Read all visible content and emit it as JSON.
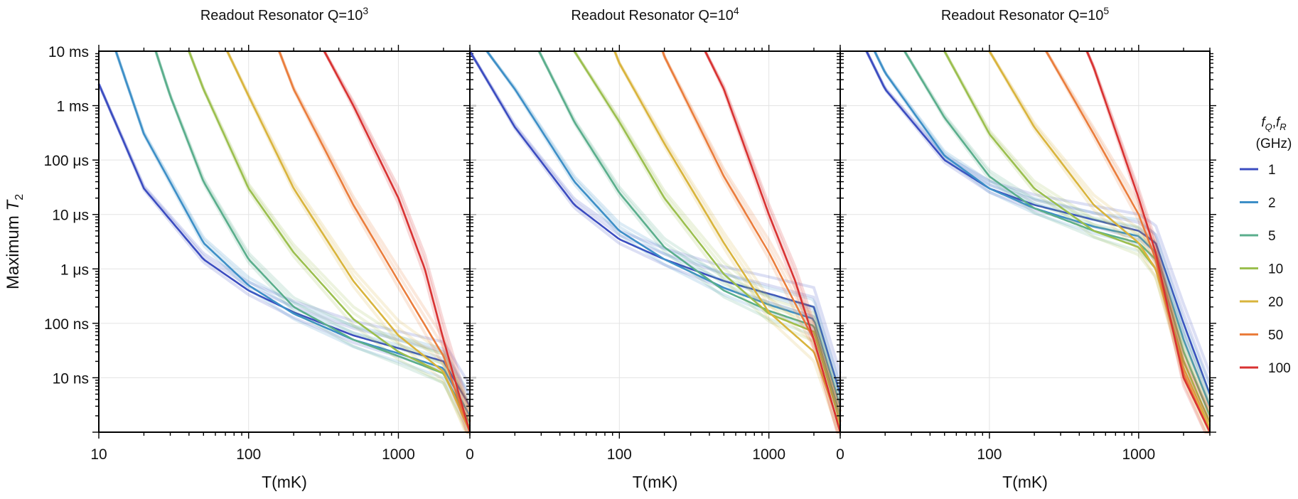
{
  "figure": {
    "ylabel_main": "Maximum ",
    "ylabel_sym": "T",
    "ylabel_sub": "2",
    "legend_title_line1_fQ": "f",
    "legend_title_line1_fQ_sub": "Q",
    "legend_title_line1_sep": ",",
    "legend_title_line1_fR": "f",
    "legend_title_line1_fR_sub": "R",
    "legend_title_line2": "(GHz)"
  },
  "chart_data": [
    {
      "type": "line",
      "title_prefix": "Readout Resonator Q=10",
      "title_exp": "3",
      "xlabel": "T(mK)",
      "xscale": "log",
      "yscale": "log",
      "xlim": [
        10,
        3000
      ],
      "ylim_seconds": [
        1e-09,
        0.01
      ],
      "xtick_labels": [
        "10",
        "100",
        "1000"
      ],
      "ytick_labels": [
        "10 ms",
        "1 ms",
        "100 μs",
        "10 μs",
        "1 μs",
        "100 ns",
        "10 ns"
      ],
      "grid": true,
      "series": [
        {
          "name": "1",
          "color": "#3b4cc0",
          "x": [
            10,
            20,
            50,
            100,
            200,
            500,
            1000,
            2000,
            3000
          ],
          "y": [
            0.0025,
            3e-05,
            1.5e-06,
            4e-07,
            1.6e-07,
            6e-08,
            3.5e-08,
            2e-08,
            3e-09
          ]
        },
        {
          "name": "2",
          "color": "#3d8fc7",
          "x": [
            13,
            20,
            50,
            100,
            200,
            500,
            1000,
            2000,
            3000
          ],
          "y": [
            0.01,
            0.0003,
            3e-06,
            5e-07,
            1.5e-07,
            5e-08,
            2.8e-08,
            1.5e-08,
            2e-09
          ]
        },
        {
          "name": "5",
          "color": "#5aae8c",
          "x": [
            24,
            30,
            50,
            100,
            200,
            500,
            1000,
            2000,
            3000
          ],
          "y": [
            0.01,
            0.0015,
            4e-05,
            1.5e-06,
            2e-07,
            5e-08,
            2.5e-08,
            1.2e-08,
            1.5e-09
          ]
        },
        {
          "name": "10",
          "color": "#9bbf4e",
          "x": [
            40,
            50,
            100,
            200,
            500,
            1000,
            2000,
            3000
          ],
          "y": [
            0.01,
            0.002,
            3e-05,
            2e-06,
            1.2e-07,
            3e-08,
            1.2e-08,
            1.2e-09
          ]
        },
        {
          "name": "20",
          "color": "#d9b43c",
          "x": [
            72,
            100,
            200,
            500,
            1000,
            2000,
            3000
          ],
          "y": [
            0.01,
            0.0015,
            3e-05,
            6e-07,
            6e-08,
            1.3e-08,
            1e-09
          ]
        },
        {
          "name": "50",
          "color": "#ea7d3c",
          "x": [
            160,
            200,
            500,
            1000,
            2000,
            3000
          ],
          "y": [
            0.01,
            0.002,
            1.5e-05,
            6e-07,
            2.5e-08,
            1e-09
          ]
        },
        {
          "name": "100",
          "color": "#d83232",
          "x": [
            320,
            500,
            1000,
            1500,
            2000,
            3000
          ],
          "y": [
            0.01,
            0.001,
            2e-05,
            1e-06,
            5e-08,
            1e-09
          ]
        }
      ]
    },
    {
      "type": "line",
      "title_prefix": "Readout Resonator Q=10",
      "title_exp": "4",
      "xlabel": "T(mK)",
      "xscale": "log",
      "yscale": "log",
      "xlim": [
        10,
        3000
      ],
      "ylim_seconds": [
        1e-09,
        0.01
      ],
      "xtick_labels": [
        "0",
        "100",
        "1000"
      ],
      "grid": true,
      "series": [
        {
          "name": "1",
          "color": "#3b4cc0",
          "x": [
            10,
            20,
            50,
            100,
            200,
            500,
            1000,
            2000,
            3000
          ],
          "y": [
            0.01,
            0.0004,
            1.5e-05,
            3.5e-06,
            1.5e-06,
            6e-07,
            3.5e-07,
            2e-07,
            5e-09
          ]
        },
        {
          "name": "2",
          "color": "#3d8fc7",
          "x": [
            13,
            20,
            50,
            100,
            200,
            500,
            1000,
            2000,
            3000
          ],
          "y": [
            0.01,
            0.002,
            4e-05,
            5e-06,
            1.5e-06,
            4.5e-07,
            2.2e-07,
            1.2e-07,
            3e-09
          ]
        },
        {
          "name": "5",
          "color": "#5aae8c",
          "x": [
            29,
            50,
            100,
            200,
            500,
            1000,
            2000,
            3000
          ],
          "y": [
            0.01,
            0.0005,
            2.5e-05,
            2.5e-06,
            4e-07,
            1.7e-07,
            9e-08,
            2e-09
          ]
        },
        {
          "name": "10",
          "color": "#9bbf4e",
          "x": [
            50,
            100,
            200,
            500,
            1000,
            2000,
            3000
          ],
          "y": [
            0.01,
            0.0005,
            2e-05,
            8e-07,
            1.5e-07,
            7e-08,
            1.5e-09
          ]
        },
        {
          "name": "20",
          "color": "#d9b43c",
          "x": [
            93,
            100,
            200,
            500,
            1000,
            2000,
            3000
          ],
          "y": [
            0.01,
            0.006,
            0.0002,
            3e-06,
            1.6e-07,
            3e-08,
            1.2e-09
          ]
        },
        {
          "name": "50",
          "color": "#ea7d3c",
          "x": [
            195,
            200,
            500,
            1000,
            2000,
            3000
          ],
          "y": [
            0.01,
            0.008,
            5e-05,
            2e-06,
            5e-08,
            1e-09
          ]
        },
        {
          "name": "100",
          "color": "#d83232",
          "x": [
            375,
            500,
            1000,
            1500,
            2000,
            3000
          ],
          "y": [
            0.01,
            0.002,
            1e-05,
            6e-07,
            5e-08,
            1e-09
          ]
        }
      ]
    },
    {
      "type": "line",
      "title_prefix": "Readout Resonator Q=10",
      "title_exp": "5",
      "xlabel": "T(mK)",
      "xscale": "log",
      "yscale": "log",
      "xlim": [
        10,
        3000
      ],
      "ylim_seconds": [
        1e-09,
        0.01
      ],
      "xtick_labels": [
        "0",
        "100",
        "1000"
      ],
      "grid": true,
      "series": [
        {
          "name": "1",
          "color": "#3b4cc0",
          "x": [
            15,
            20,
            50,
            100,
            200,
            500,
            1000,
            1300,
            2000,
            3000
          ],
          "y": [
            0.01,
            0.002,
            0.0001,
            3e-05,
            1.5e-05,
            8e-06,
            5e-06,
            3e-06,
            1e-07,
            5e-09
          ]
        },
        {
          "name": "2",
          "color": "#3d8fc7",
          "x": [
            17,
            20,
            50,
            100,
            200,
            500,
            1000,
            1300,
            2000,
            3000
          ],
          "y": [
            0.01,
            0.004,
            0.00012,
            3e-05,
            1.3e-05,
            6e-06,
            4e-06,
            2e-06,
            5e-08,
            3e-09
          ]
        },
        {
          "name": "5",
          "color": "#5aae8c",
          "x": [
            27,
            50,
            100,
            200,
            500,
            1000,
            1300,
            2000,
            3000
          ],
          "y": [
            0.01,
            0.0006,
            5e-05,
            1.3e-05,
            5e-06,
            3e-06,
            1.5e-06,
            3e-08,
            2e-09
          ]
        },
        {
          "name": "10",
          "color": "#9bbf4e",
          "x": [
            50,
            100,
            200,
            500,
            1000,
            1300,
            2000,
            3000
          ],
          "y": [
            0.01,
            0.0003,
            3e-05,
            5e-06,
            2.5e-06,
            1e-06,
            2e-08,
            1.5e-09
          ]
        },
        {
          "name": "20",
          "color": "#d9b43c",
          "x": [
            100,
            200,
            500,
            1000,
            1300,
            2000,
            3000
          ],
          "y": [
            0.01,
            0.0004,
            1.5e-05,
            3e-06,
            1e-06,
            1.5e-08,
            1.2e-09
          ]
        },
        {
          "name": "50",
          "color": "#ea7d3c",
          "x": [
            240,
            500,
            1000,
            1300,
            2000,
            3000
          ],
          "y": [
            0.01,
            0.0003,
            1e-05,
            1.5e-06,
            1.2e-08,
            1e-09
          ]
        },
        {
          "name": "100",
          "color": "#d83232",
          "x": [
            450,
            500,
            1000,
            1300,
            2000,
            3000
          ],
          "y": [
            0.01,
            0.005,
            2e-05,
            2e-06,
            1e-08,
            1e-09
          ]
        }
      ]
    }
  ]
}
